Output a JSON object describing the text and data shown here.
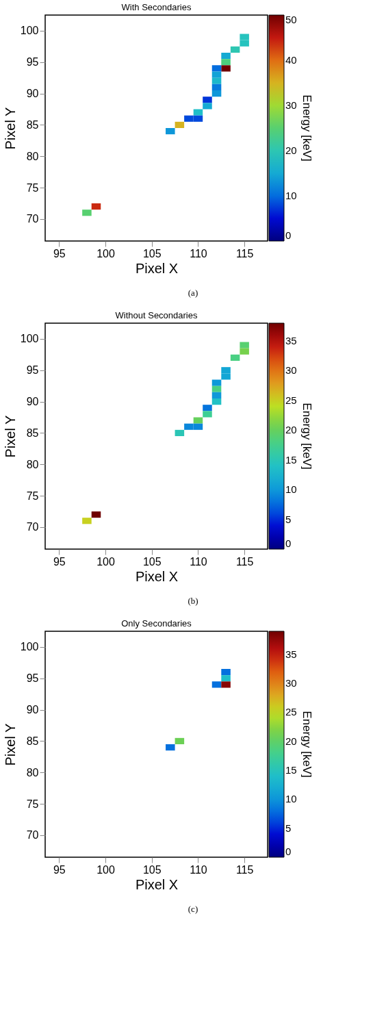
{
  "chart_data": [
    {
      "type": "scatter",
      "title": "With Secondaries",
      "xlabel": "Pixel X",
      "ylabel": "Pixel Y",
      "clabel": "Energy [keV]",
      "marker": "square",
      "grid": false,
      "annotations": [
        "(a)"
      ],
      "x": [
        115,
        115,
        114,
        113,
        113,
        113,
        112,
        112,
        112,
        112,
        112,
        111,
        111,
        110,
        109,
        110,
        108,
        107,
        99,
        98
      ],
      "values": [
        99,
        98,
        97,
        96,
        95,
        94,
        94,
        93,
        92,
        91,
        90,
        89,
        88,
        87,
        86,
        86,
        85,
        84,
        72,
        71
      ],
      "cvalues": [
        19,
        19,
        20,
        15,
        24,
        50,
        10,
        14,
        17,
        11,
        13,
        7,
        15,
        18,
        8,
        8,
        35,
        13,
        44,
        25
      ],
      "xlim": [
        93.5,
        117.5
      ],
      "ylim": [
        66.5,
        102.5
      ],
      "xticks": [
        95,
        100,
        105,
        110,
        115
      ],
      "yticks": [
        70,
        75,
        80,
        85,
        90,
        95,
        100
      ],
      "clim": [
        0,
        50
      ],
      "cticks": [
        0,
        10,
        20,
        30,
        40,
        50
      ]
    },
    {
      "type": "scatter",
      "title": "Without Secondaries",
      "xlabel": "Pixel X",
      "ylabel": "Pixel Y",
      "clabel": "Energy [keV]",
      "marker": "square",
      "grid": false,
      "annotations": [
        "(b)"
      ],
      "x": [
        115,
        115,
        114,
        113,
        113,
        112,
        112,
        112,
        112,
        111,
        111,
        110,
        109,
        110,
        108,
        99,
        98
      ],
      "values": [
        99,
        98,
        97,
        95,
        94,
        93,
        92,
        91,
        90,
        89,
        88,
        87,
        86,
        86,
        85,
        72,
        71
      ],
      "cvalues": [
        19,
        21,
        18,
        11,
        11,
        10,
        18,
        10,
        14,
        8,
        17,
        20,
        9,
        9,
        15,
        38,
        25
      ],
      "xlim": [
        93.5,
        117.5
      ],
      "ylim": [
        66.5,
        102.5
      ],
      "xticks": [
        95,
        100,
        105,
        110,
        115
      ],
      "yticks": [
        70,
        75,
        80,
        85,
        90,
        95,
        100
      ],
      "clim": [
        0,
        38
      ],
      "cticks": [
        0,
        5,
        10,
        15,
        20,
        25,
        30,
        35
      ]
    },
    {
      "type": "scatter",
      "title": "Only Secondaries",
      "xlabel": "Pixel X",
      "ylabel": "Pixel Y",
      "clabel": "Energy [keV]",
      "marker": "square",
      "grid": false,
      "annotations": [
        "(c)"
      ],
      "x": [
        113,
        113,
        112,
        113,
        108,
        107
      ],
      "values": [
        96,
        95,
        94,
        94,
        85,
        84
      ],
      "cvalues": [
        8,
        14,
        8,
        38,
        21,
        8
      ],
      "xlim": [
        93.5,
        117.5
      ],
      "ylim": [
        66.5,
        102.5
      ],
      "xticks": [
        95,
        100,
        105,
        110,
        115
      ],
      "yticks": [
        70,
        75,
        80,
        85,
        90,
        95,
        100
      ],
      "clim": [
        0,
        39
      ],
      "cticks": [
        0,
        5,
        10,
        15,
        20,
        25,
        30,
        35
      ]
    }
  ]
}
